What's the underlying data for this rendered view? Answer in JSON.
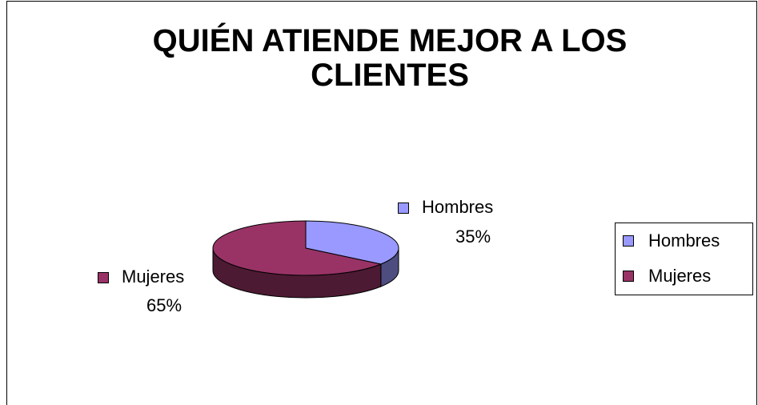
{
  "chart_data": {
    "type": "pie",
    "title": "QUIÉN ATIENDE MEJOR A LOS CLIENTES",
    "categories": [
      "Hombres",
      "Mujeres"
    ],
    "values": [
      35,
      65
    ],
    "value_labels": [
      "35%",
      "65%"
    ],
    "colors": [
      "#9999ff",
      "#993366"
    ],
    "side_colors": [
      "#4d4d80",
      "#4d1a33"
    ],
    "legend": "right",
    "three_d": true
  }
}
